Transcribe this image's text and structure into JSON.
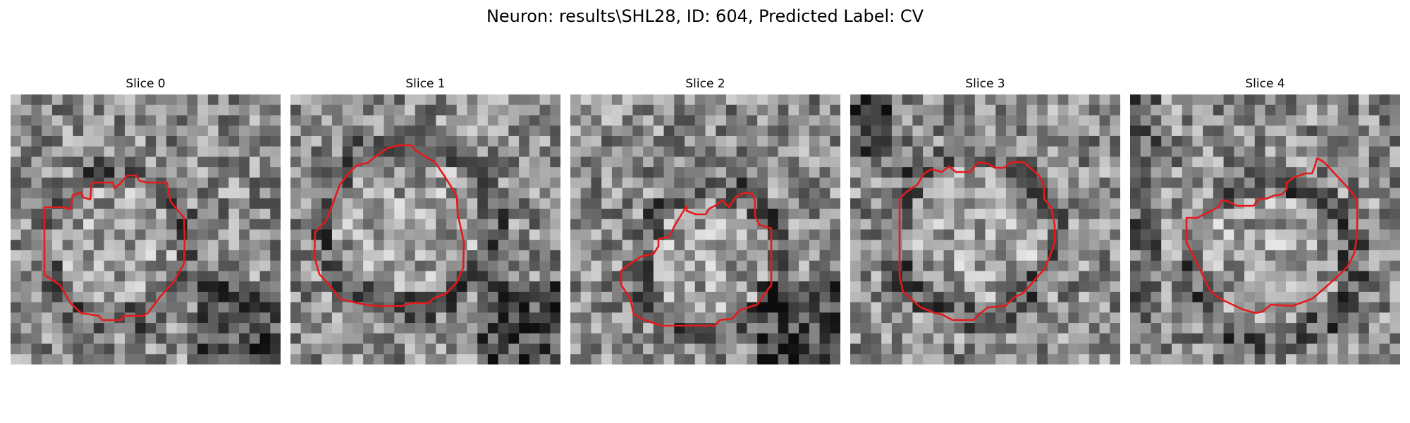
{
  "figure": {
    "title": "Neuron: results\\SHL28, ID: 604, Predicted Label: CV"
  },
  "colors": {
    "contour": "#e41a1c",
    "background": "#ffffff",
    "pixel_scale": "grayscale"
  },
  "panels": [
    {
      "title": "Slice 0",
      "seed": 11,
      "shape": "contour-slice-0",
      "dark_region": "bottom-right"
    },
    {
      "title": "Slice 1",
      "seed": 23,
      "shape": "contour-slice-1",
      "dark_region": "bottom-right"
    },
    {
      "title": "Slice 2",
      "seed": 37,
      "shape": "contour-slice-2",
      "dark_region": "bottom-right"
    },
    {
      "title": "Slice 3",
      "seed": 41,
      "shape": "contour-slice-3",
      "dark_region": "top-left"
    },
    {
      "title": "Slice 4",
      "seed": 53,
      "shape": "contour-slice-4",
      "dark_region": "left"
    }
  ]
}
